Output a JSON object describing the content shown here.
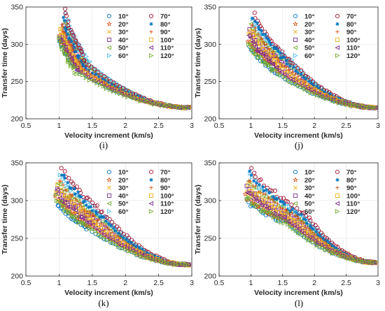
{
  "chart_data": [
    {
      "type": "scatter",
      "panel": "i",
      "caption": "(i)",
      "xlabel": "Velocity increment (km/s)",
      "ylabel": "Transfer time (days)",
      "xlim": [
        0.5,
        3
      ],
      "ylim": [
        200,
        350
      ],
      "xticks": [
        0.5,
        1,
        1.5,
        2,
        2.5,
        3
      ],
      "yticks": [
        200,
        250,
        300,
        350
      ],
      "legend_position": "top-right",
      "series": [
        {
          "name": "10°",
          "start": [
            1.0,
            305
          ],
          "knee": [
            1.3,
            264
          ]
        },
        {
          "name": "20°",
          "start": [
            1.02,
            310
          ],
          "knee": [
            1.32,
            266
          ]
        },
        {
          "name": "30°",
          "start": [
            1.04,
            318
          ],
          "knee": [
            1.35,
            268
          ]
        },
        {
          "name": "40°",
          "start": [
            1.06,
            325
          ],
          "knee": [
            1.38,
            270
          ]
        },
        {
          "name": "50°",
          "start": [
            1.08,
            332
          ],
          "knee": [
            1.42,
            272
          ]
        },
        {
          "name": "60°",
          "start": [
            1.1,
            340
          ],
          "knee": [
            1.45,
            274
          ]
        },
        {
          "name": "70°",
          "start": [
            1.08,
            346
          ],
          "knee": [
            1.4,
            276
          ]
        },
        {
          "name": "80°",
          "start": [
            1.06,
            335
          ],
          "knee": [
            1.36,
            271
          ]
        },
        {
          "name": "90°",
          "start": [
            1.04,
            328
          ],
          "knee": [
            1.33,
            269
          ]
        },
        {
          "name": "100°",
          "start": [
            1.02,
            320
          ],
          "knee": [
            1.3,
            267
          ]
        },
        {
          "name": "110°",
          "start": [
            1.01,
            312
          ],
          "knee": [
            1.28,
            265
          ]
        },
        {
          "name": "120°",
          "start": [
            1.0,
            308
          ],
          "knee": [
            1.26,
            263
          ]
        }
      ],
      "end": [
        2.95,
        215
      ]
    },
    {
      "type": "scatter",
      "panel": "j",
      "caption": "(j)",
      "xlabel": "Velocity increment (km/s)",
      "ylabel": "Transfer time (days)",
      "xlim": [
        0.5,
        3
      ],
      "ylim": [
        200,
        350
      ],
      "xticks": [
        0.5,
        1,
        1.5,
        2,
        2.5,
        3
      ],
      "yticks": [
        200,
        250,
        300,
        350
      ],
      "legend_position": "top-right",
      "series": [
        {
          "name": "10°",
          "start": [
            0.98,
            298
          ],
          "knee": [
            1.4,
            262
          ]
        },
        {
          "name": "20°",
          "start": [
            0.96,
            305
          ],
          "knee": [
            1.45,
            265
          ]
        },
        {
          "name": "30°",
          "start": [
            0.97,
            312
          ],
          "knee": [
            1.5,
            268
          ]
        },
        {
          "name": "40°",
          "start": [
            0.98,
            318
          ],
          "knee": [
            1.55,
            270
          ]
        },
        {
          "name": "50°",
          "start": [
            1.0,
            325
          ],
          "knee": [
            1.6,
            273
          ]
        },
        {
          "name": "60°",
          "start": [
            1.02,
            332
          ],
          "knee": [
            1.65,
            276
          ]
        },
        {
          "name": "70°",
          "start": [
            1.05,
            340
          ],
          "knee": [
            1.62,
            278
          ]
        },
        {
          "name": "80°",
          "start": [
            1.04,
            335
          ],
          "knee": [
            1.58,
            275
          ]
        },
        {
          "name": "90°",
          "start": [
            1.01,
            328
          ],
          "knee": [
            1.52,
            272
          ]
        },
        {
          "name": "100°",
          "start": [
            0.99,
            320
          ],
          "knee": [
            1.48,
            269
          ]
        },
        {
          "name": "110°",
          "start": [
            0.97,
            310
          ],
          "knee": [
            1.43,
            266
          ]
        },
        {
          "name": "120°",
          "start": [
            0.96,
            302
          ],
          "knee": [
            1.38,
            263
          ]
        }
      ],
      "end": [
        2.95,
        215
      ]
    },
    {
      "type": "scatter",
      "panel": "k",
      "caption": "(k)",
      "xlabel": "Velocity increment (km/s)",
      "ylabel": "Transfer time (days)",
      "xlim": [
        0.5,
        3
      ],
      "ylim": [
        200,
        350
      ],
      "xticks": [
        0.5,
        1,
        1.5,
        2,
        2.5,
        3
      ],
      "yticks": [
        200,
        250,
        300,
        350
      ],
      "legend_position": "top-right",
      "series": [
        {
          "name": "10°",
          "start": [
            0.97,
            296
          ],
          "knee": [
            1.45,
            262
          ]
        },
        {
          "name": "20°",
          "start": [
            0.95,
            303
          ],
          "knee": [
            1.5,
            265
          ]
        },
        {
          "name": "30°",
          "start": [
            0.96,
            310
          ],
          "knee": [
            1.55,
            268
          ]
        },
        {
          "name": "40°",
          "start": [
            0.97,
            316
          ],
          "knee": [
            1.6,
            271
          ]
        },
        {
          "name": "50°",
          "start": [
            0.99,
            324
          ],
          "knee": [
            1.65,
            274
          ]
        },
        {
          "name": "60°",
          "start": [
            1.02,
            334
          ],
          "knee": [
            1.7,
            277
          ]
        },
        {
          "name": "70°",
          "start": [
            1.05,
            342
          ],
          "knee": [
            1.72,
            279
          ]
        },
        {
          "name": "80°",
          "start": [
            1.04,
            336
          ],
          "knee": [
            1.66,
            276
          ]
        },
        {
          "name": "90°",
          "start": [
            1.01,
            328
          ],
          "knee": [
            1.6,
            273
          ]
        },
        {
          "name": "100°",
          "start": [
            0.98,
            320
          ],
          "knee": [
            1.55,
            270
          ]
        },
        {
          "name": "110°",
          "start": [
            0.96,
            312
          ],
          "knee": [
            1.5,
            267
          ]
        },
        {
          "name": "120°",
          "start": [
            0.95,
            305
          ],
          "knee": [
            1.45,
            264
          ]
        }
      ],
      "end": [
        2.95,
        215
      ]
    },
    {
      "type": "scatter",
      "panel": "l",
      "caption": "(l)",
      "xlabel": "Velocity increment (km/s)",
      "ylabel": "Transfer time (days)",
      "xlim": [
        0.5,
        3
      ],
      "ylim": [
        200,
        350
      ],
      "xticks": [
        0.5,
        1,
        1.5,
        2,
        2.5,
        3
      ],
      "yticks": [
        200,
        250,
        300,
        350
      ],
      "legend_position": "top-right",
      "series": [
        {
          "name": "10°",
          "start": [
            0.93,
            300
          ],
          "knee": [
            1.6,
            268
          ]
        },
        {
          "name": "20°",
          "start": [
            0.92,
            306
          ],
          "knee": [
            1.65,
            270
          ]
        },
        {
          "name": "30°",
          "start": [
            0.93,
            312
          ],
          "knee": [
            1.7,
            272
          ]
        },
        {
          "name": "40°",
          "start": [
            0.94,
            318
          ],
          "knee": [
            1.75,
            274
          ]
        },
        {
          "name": "50°",
          "start": [
            0.96,
            326
          ],
          "knee": [
            1.8,
            276
          ]
        },
        {
          "name": "60°",
          "start": [
            0.98,
            334
          ],
          "knee": [
            1.85,
            278
          ]
        },
        {
          "name": "70°",
          "start": [
            1.0,
            342
          ],
          "knee": [
            1.88,
            280
          ]
        },
        {
          "name": "80°",
          "start": [
            0.98,
            336
          ],
          "knee": [
            1.82,
            277
          ]
        },
        {
          "name": "90°",
          "start": [
            0.96,
            328
          ],
          "knee": [
            1.76,
            275
          ]
        },
        {
          "name": "100°",
          "start": [
            0.95,
            320
          ],
          "knee": [
            1.7,
            273
          ]
        },
        {
          "name": "110°",
          "start": [
            0.94,
            312
          ],
          "knee": [
            1.64,
            271
          ]
        },
        {
          "name": "120°",
          "start": [
            0.93,
            305
          ],
          "knee": [
            1.58,
            269
          ]
        }
      ],
      "end": [
        2.95,
        218
      ]
    }
  ],
  "series_styles": [
    {
      "color": "#0072BD",
      "marker": "circle"
    },
    {
      "color": "#D95319",
      "marker": "star"
    },
    {
      "color": "#EDB120",
      "marker": "x"
    },
    {
      "color": "#7E2F8E",
      "marker": "square"
    },
    {
      "color": "#77AC30",
      "marker": "triangle-left"
    },
    {
      "color": "#4DBEEE",
      "marker": "triangle-right"
    },
    {
      "color": "#A2142F",
      "marker": "circle"
    },
    {
      "color": "#0072BD",
      "marker": "asterisk"
    },
    {
      "color": "#D95319",
      "marker": "plus"
    },
    {
      "color": "#EDB120",
      "marker": "square"
    },
    {
      "color": "#7E2F8E",
      "marker": "triangle-left"
    },
    {
      "color": "#77AC30",
      "marker": "triangle-right"
    }
  ]
}
